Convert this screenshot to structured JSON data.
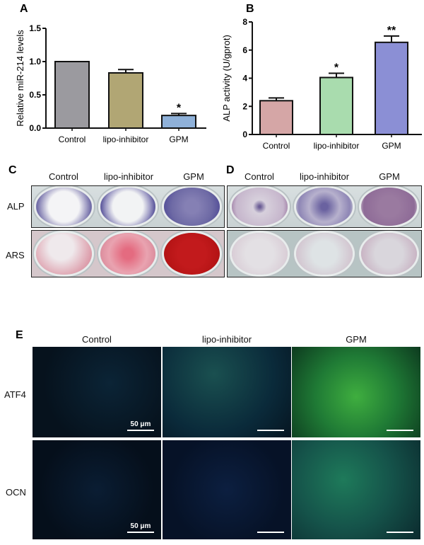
{
  "chart_data": [
    {
      "panel": "A",
      "type": "bar",
      "categories": [
        "Control",
        "lipo-inhibitor",
        "GPM"
      ],
      "values": [
        1.0,
        0.83,
        0.19
      ],
      "errors": [
        0.0,
        0.05,
        0.03
      ],
      "significance": [
        "",
        "",
        "*"
      ],
      "ylabel": "Relative miR-214 levels",
      "ylim": [
        0,
        1.5
      ],
      "yticks": [
        "0.0",
        "0.5",
        "1.0",
        "1.5"
      ],
      "colors": [
        "#9b9a9f",
        "#b1a674",
        "#8fb1d9"
      ]
    },
    {
      "panel": "B",
      "type": "bar",
      "categories": [
        "Control",
        "lipo-inhibitor",
        "GPM"
      ],
      "values": [
        2.4,
        4.05,
        6.55
      ],
      "errors": [
        0.2,
        0.3,
        0.45
      ],
      "significance": [
        "",
        "*",
        "**"
      ],
      "ylabel": "ALP activity (U/gprot)",
      "ylim": [
        0,
        8
      ],
      "yticks": [
        "0",
        "2",
        "4",
        "6",
        "8"
      ],
      "colors": [
        "#d5a6a6",
        "#a9dcae",
        "#8b8fd5"
      ]
    }
  ],
  "panels": {
    "C": {
      "label": "C",
      "columns": [
        "Control",
        "lipo-inhibitor",
        "GPM"
      ],
      "rows": [
        "ALP",
        "ARS"
      ]
    },
    "D": {
      "label": "D",
      "columns": [
        "Control",
        "lipo-inhibitor",
        "GPM"
      ]
    },
    "E": {
      "label": "E",
      "columns": [
        "Control",
        "lipo-inhibitor",
        "GPM"
      ],
      "rows": [
        "ATF4",
        "OCN"
      ],
      "scale_bar": "50 μm"
    }
  }
}
